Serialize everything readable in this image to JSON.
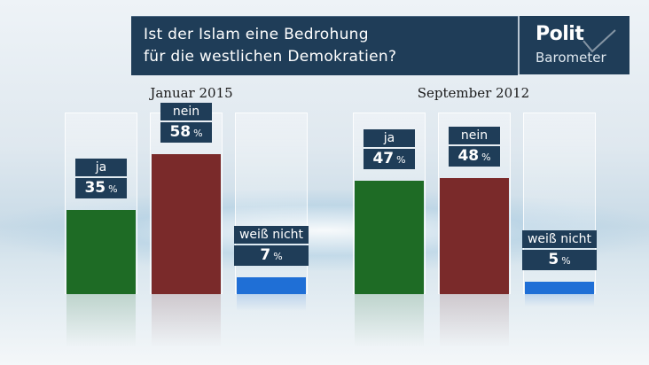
{
  "header": {
    "title": "Ist der Islam eine Bedrohung\nfür die westlichen Demokratien?"
  },
  "logo": {
    "line1": "Polit",
    "line2": "Barometer"
  },
  "colors": {
    "ja": "#1e6b25",
    "nein": "#7a2a2a",
    "weiss_nicht": "#1f6fd6"
  },
  "chart_data": [
    {
      "type": "bar",
      "title": "Januar 2015",
      "categories": [
        "ja",
        "nein",
        "weiß nicht"
      ],
      "values": [
        35,
        58,
        7
      ],
      "unit": "%",
      "ylim": [
        0,
        58
      ]
    },
    {
      "type": "bar",
      "title": "September 2012",
      "categories": [
        "ja",
        "nein",
        "weiß nicht"
      ],
      "values": [
        47,
        48,
        5
      ],
      "unit": "%",
      "ylim": [
        0,
        58
      ]
    }
  ]
}
